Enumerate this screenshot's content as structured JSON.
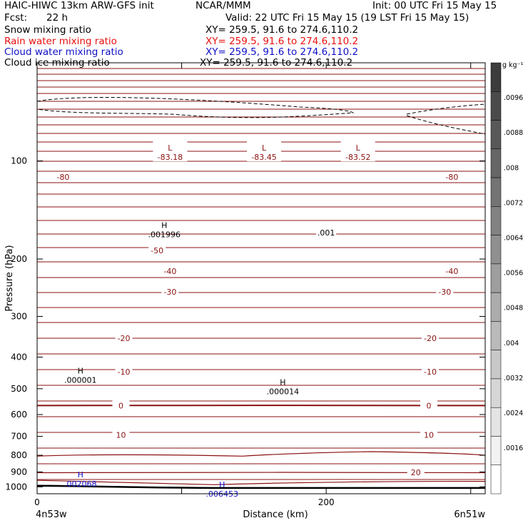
{
  "header": {
    "title": "HAIC-HIWC 13km ARW-GFS init",
    "org": "NCAR/MMM",
    "init": "Init: 00 UTC Fri 15 May 15",
    "fcst_label": "Fcst:",
    "fcst_value": "22 h",
    "valid": "Valid: 22 UTC Fri 15 May 15 (19 LST Fri 15 May 15)",
    "fields": [
      {
        "name": "Snow mixing ratio",
        "xy": "XY= 259.5, 91.6 to 274.6,110.2",
        "color": "#000000"
      },
      {
        "name": "Rain water mixing ratio",
        "xy": "XY= 259.5, 91.6 to 274.6,110.2",
        "color": "#e8110f"
      },
      {
        "name": "Cloud water mixing ratio",
        "xy": "XY= 259.5, 91.6 to 274.6,110.2",
        "color": "#1010c8"
      },
      {
        "name": "Cloud ice mixing ratio",
        "xy": "XY= 259.5, 91.6 to 274.6,110.2",
        "color": "#000000"
      }
    ]
  },
  "chart_data": {
    "type": "cross-section contour",
    "xlabel": "Distance (km)",
    "ylabel": "Pressure (hPa)",
    "xlim": [
      0,
      310
    ],
    "ylim": [
      1050,
      50
    ],
    "y_scale": "log",
    "x_ticks": [
      0,
      100,
      200,
      300
    ],
    "x_tick_labels": [
      "0",
      "",
      "200",
      ""
    ],
    "y_ticks": [
      100,
      200,
      300,
      400,
      500,
      600,
      700,
      800,
      900,
      1000
    ],
    "y_tick_labels": [
      "100",
      "200",
      "300",
      "400",
      "500",
      "600",
      "700",
      "800",
      "900",
      "1000"
    ],
    "left_endpoint": "4n53w",
    "right_endpoint": "6n51w",
    "colorbar": {
      "unit": "g kg⁻¹",
      "labels": [
        ".0096",
        ".0088",
        ".008",
        ".0072",
        ".0064",
        ".0056",
        ".0048",
        ".004",
        ".0032",
        ".0024",
        ".0016"
      ],
      "shades": [
        "#3c3c3c",
        "#4a4a4a",
        "#585858",
        "#666666",
        "#747474",
        "#828282",
        "#909090",
        "#9e9e9e",
        "#acacac",
        "#bababa",
        "#c8c8c8",
        "#d6d6d6",
        "#e4e4e4",
        "#f2f2f2",
        "#ffffff"
      ]
    },
    "temperature_color": "#8b1010",
    "temperature_labels": [
      {
        "value": "-80",
        "x": 18,
        "p": 112
      },
      {
        "value": "-80",
        "x": 287,
        "p": 112
      },
      {
        "value": "-50",
        "x": 83,
        "p": 188
      },
      {
        "value": "-40",
        "x": 92,
        "p": 218
      },
      {
        "value": "-40",
        "x": 287,
        "p": 218
      },
      {
        "value": "-30",
        "x": 92,
        "p": 252
      },
      {
        "value": "-30",
        "x": 282,
        "p": 252
      },
      {
        "value": "-20",
        "x": 60,
        "p": 350
      },
      {
        "value": "-20",
        "x": 272,
        "p": 350
      },
      {
        "value": "-10",
        "x": 60,
        "p": 443
      },
      {
        "value": "-10",
        "x": 272,
        "p": 443
      },
      {
        "value": "0",
        "x": 58,
        "p": 563
      },
      {
        "value": "0",
        "x": 271,
        "p": 563
      },
      {
        "value": "10",
        "x": 58,
        "p": 692
      },
      {
        "value": "10",
        "x": 271,
        "p": 692
      },
      {
        "value": "20",
        "x": 262,
        "p": 903
      }
    ],
    "extrema": [
      {
        "symbol": "L",
        "value": "-83.18",
        "x": 92,
        "p": 88,
        "color": "#8b1010"
      },
      {
        "symbol": "L",
        "value": "-83.45",
        "x": 157,
        "p": 88,
        "color": "#8b1010"
      },
      {
        "symbol": "L",
        "value": "-83.52",
        "x": 222,
        "p": 88,
        "color": "#8b1010"
      },
      {
        "symbol": "H",
        "value": ".001996",
        "x": 88,
        "p": 152,
        "color": "#000000"
      },
      {
        "symbol": "H",
        "value": ".000001",
        "x": 30,
        "p": 425,
        "color": "#000000"
      },
      {
        "symbol": "H",
        "value": ".000014",
        "x": 170,
        "p": 460,
        "color": "#000000"
      },
      {
        "symbol": "H",
        "value": ".002068",
        "x": 30,
        "p": 885,
        "color": "#1010c8"
      },
      {
        "symbol": "H",
        "value": ".006453",
        "x": 128,
        "p": 950,
        "color": "#1010c8"
      }
    ],
    "ice_contour_label": {
      "value": ".001",
      "x": 200,
      "p": 166
    },
    "terrain_color": "#000000"
  }
}
